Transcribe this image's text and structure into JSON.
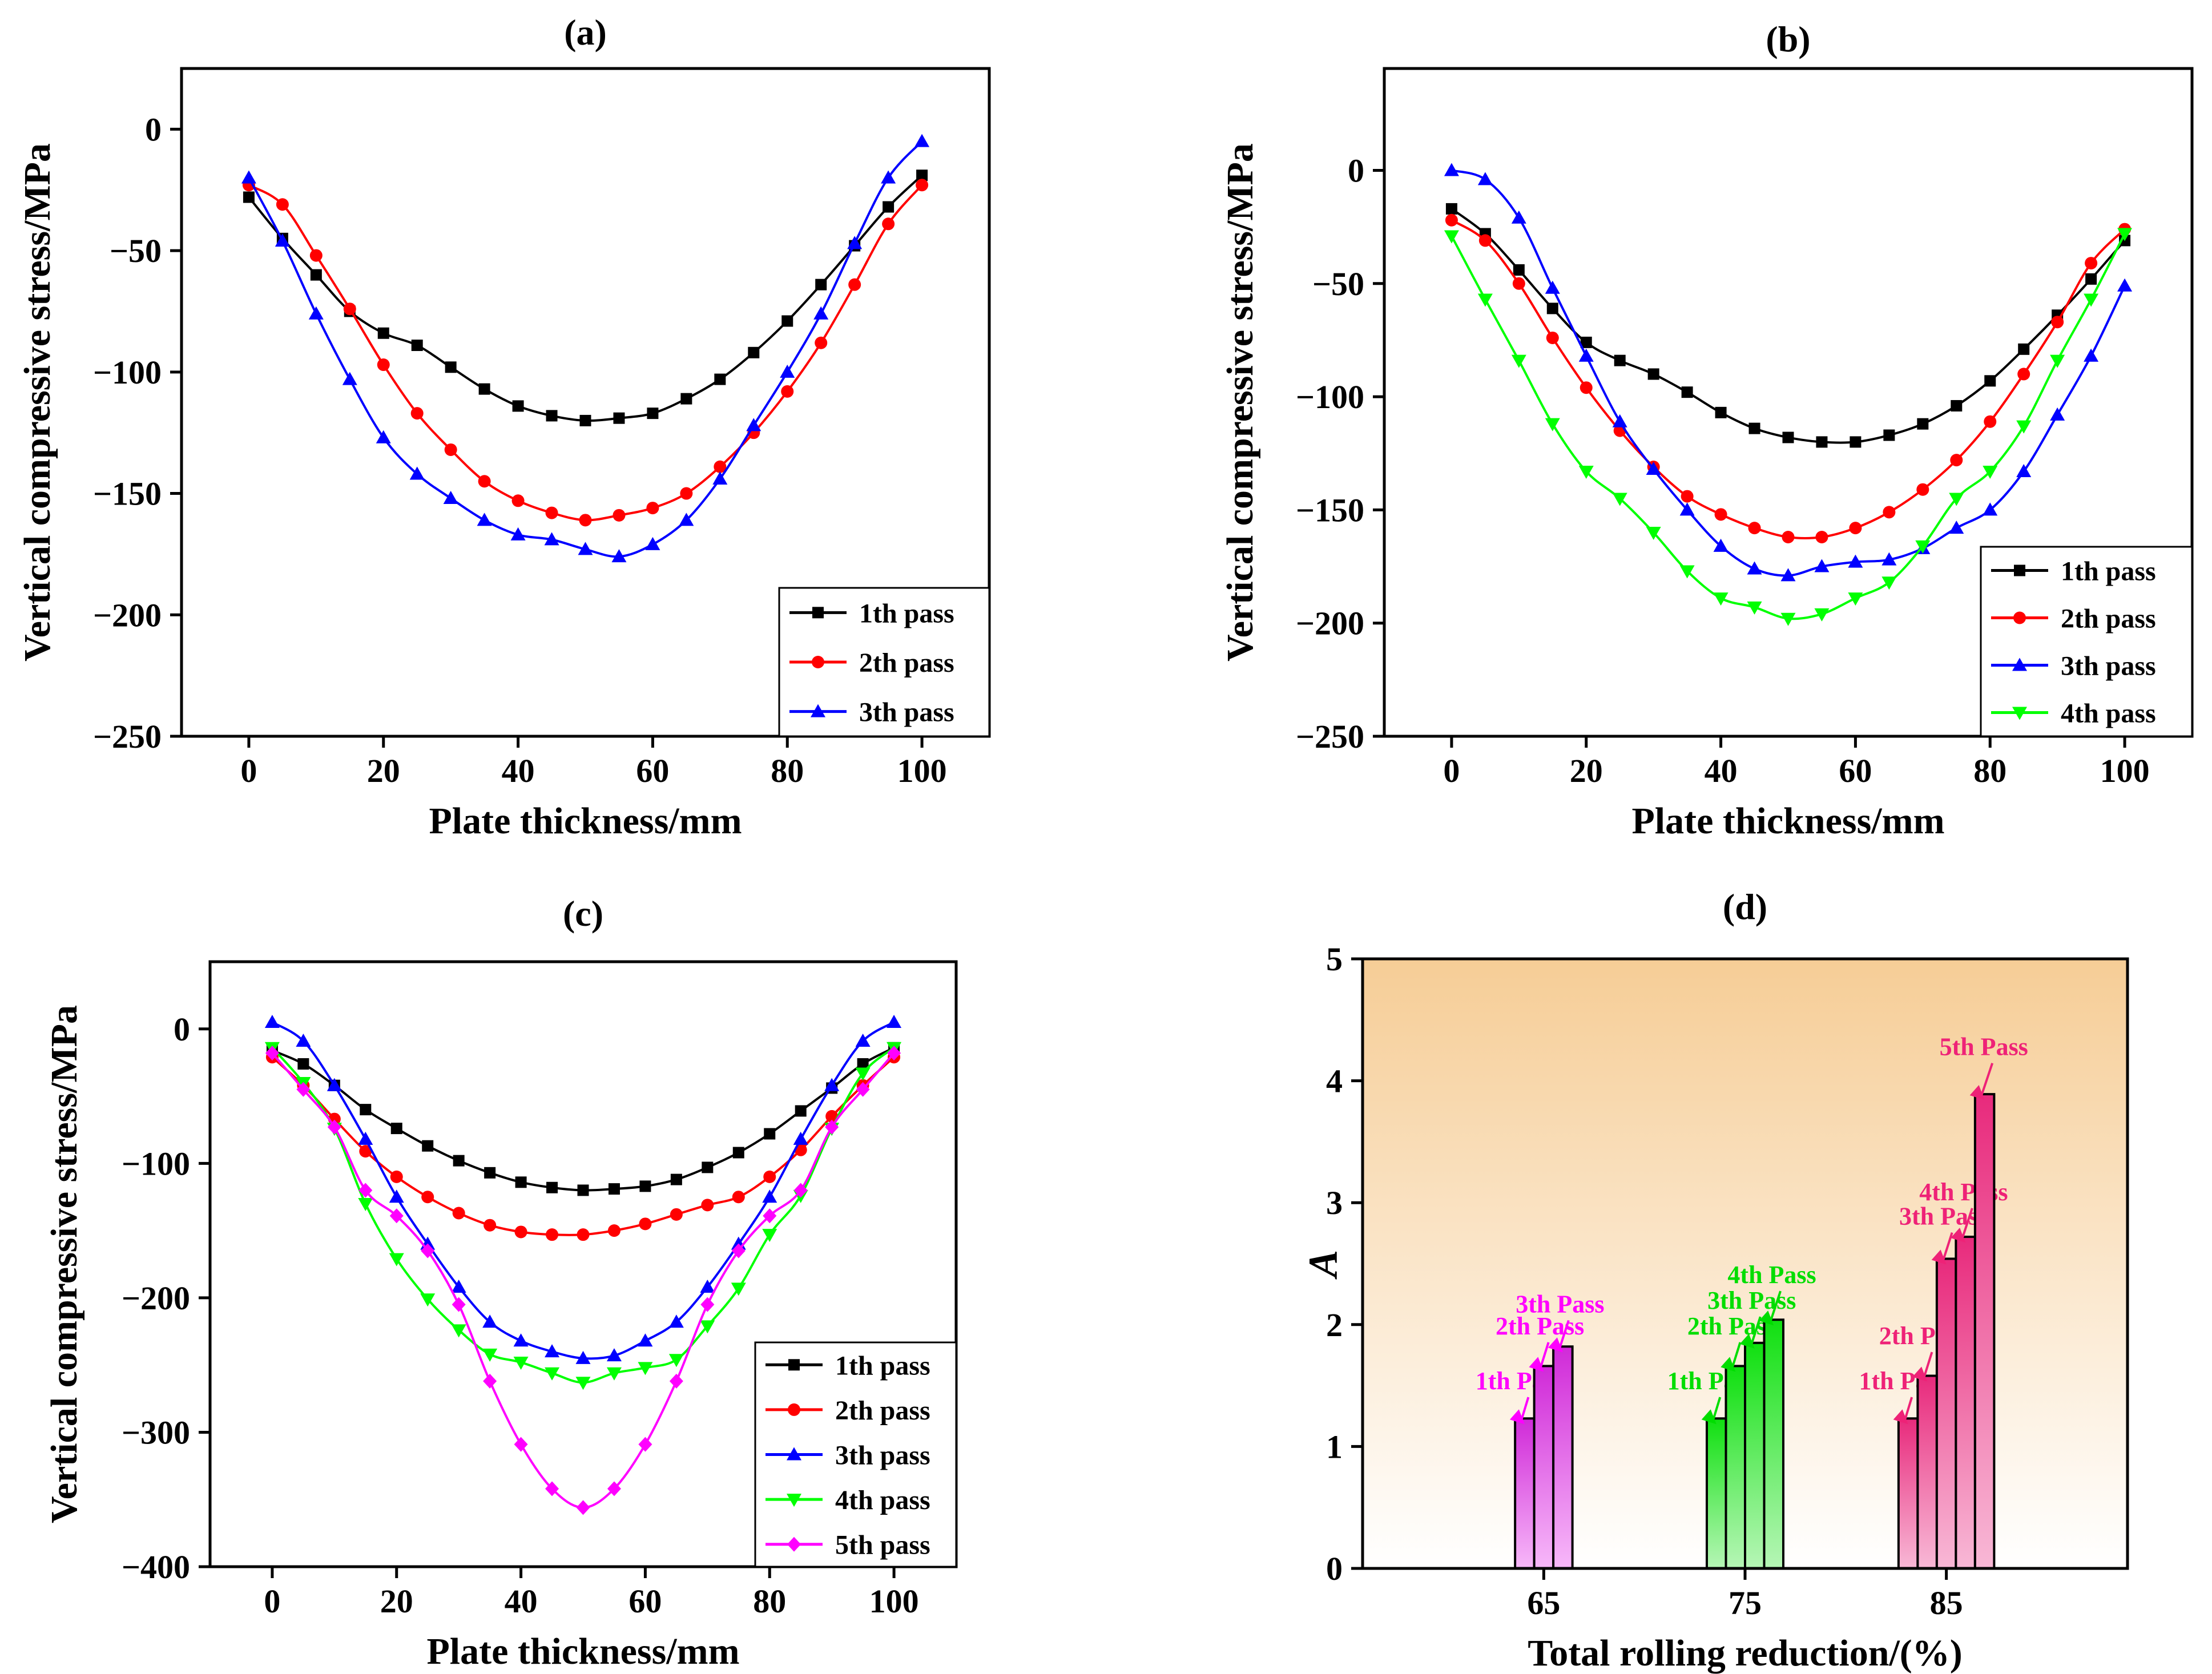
{
  "colors": {
    "pass1": "#000000",
    "pass2": "#ff0000",
    "pass3": "#0000ff",
    "pass4": "#00ff00",
    "pass5": "#ff00ff",
    "bar65": "#e040e8",
    "bar75": "#22dd22",
    "bar85": "#ee3c8c",
    "ann65": "#ff00ff",
    "ann75": "#00dd00",
    "ann85": "#ee2277",
    "panelBgTop": "#f6cd96",
    "panelBgBottom": "#ffffff"
  },
  "chart_data": [
    {
      "type": "line",
      "panel_label": "(a)",
      "xlabel": "Plate thickness/mm",
      "ylabel": "Vertical compressive stress/MPa",
      "xlim": [
        -10,
        110
      ],
      "ylim": [
        -250,
        25
      ],
      "xticks": [
        0,
        20,
        40,
        60,
        80,
        100
      ],
      "yticks": [
        0,
        -50,
        -100,
        -150,
        -200,
        -250
      ],
      "legend_position": "bottom-right",
      "x": [
        0,
        5,
        10,
        15,
        20,
        25,
        30,
        35,
        40,
        45,
        50,
        55,
        60,
        65,
        70,
        75,
        80,
        85,
        90,
        95,
        100
      ],
      "series": [
        {
          "name": "1th pass",
          "marker": "square",
          "color_key": "pass1",
          "values": [
            -28,
            -45,
            -60,
            -75,
            -84,
            -89,
            -98,
            -107,
            -114,
            -118,
            -120,
            -119,
            -117,
            -111,
            -103,
            -92,
            -79,
            -64,
            -48,
            -32,
            -19
          ]
        },
        {
          "name": "2th pass",
          "marker": "circle",
          "color_key": "pass2",
          "values": [
            -23,
            -31,
            -52,
            -74,
            -97,
            -117,
            -132,
            -145,
            -153,
            -158,
            -161,
            -159,
            -156,
            -150,
            -139,
            -125,
            -108,
            -88,
            -64,
            -39,
            -23
          ]
        },
        {
          "name": "3th pass",
          "marker": "triangle-up",
          "color_key": "pass3",
          "values": [
            -20,
            -46,
            -76,
            -103,
            -127,
            -142,
            -152,
            -161,
            -167,
            -169,
            -173,
            -176,
            -171,
            -161,
            -144,
            -122,
            -100,
            -76,
            -47,
            -20,
            -5
          ]
        }
      ]
    },
    {
      "type": "line",
      "panel_label": "(b)",
      "xlabel": "Plate thickness/mm",
      "ylabel": "Vertical compressive stress/MPa",
      "xlim": [
        -10,
        110
      ],
      "ylim": [
        -250,
        45
      ],
      "xticks": [
        0,
        20,
        40,
        60,
        80,
        100
      ],
      "yticks": [
        0,
        -50,
        -100,
        -150,
        -200,
        -250
      ],
      "legend_position": "bottom-right",
      "x": [
        0,
        5,
        10,
        15,
        20,
        25,
        30,
        35,
        40,
        45,
        50,
        55,
        60,
        65,
        70,
        75,
        80,
        85,
        90,
        95,
        100
      ],
      "series": [
        {
          "name": "1th pass",
          "marker": "square",
          "color_key": "pass1",
          "values": [
            -17,
            -28,
            -44,
            -61,
            -76,
            -84,
            -90,
            -98,
            -107,
            -114,
            -118,
            -120,
            -120,
            -117,
            -112,
            -104,
            -93,
            -79,
            -64,
            -48,
            -31
          ]
        },
        {
          "name": "2th pass",
          "marker": "circle",
          "color_key": "pass2",
          "values": [
            -22,
            -31,
            -50,
            -74,
            -96,
            -115,
            -131,
            -144,
            -152,
            -158,
            -162,
            -162,
            -158,
            -151,
            -141,
            -128,
            -111,
            -90,
            -67,
            -41,
            -26
          ]
        },
        {
          "name": "3th pass",
          "marker": "triangle-up",
          "color_key": "pass3",
          "values": [
            0,
            -4,
            -21,
            -52,
            -82,
            -111,
            -132,
            -150,
            -166,
            -176,
            -179,
            -175,
            -173,
            -172,
            -167,
            -158,
            -150,
            -133,
            -108,
            -82,
            -51
          ]
        },
        {
          "name": "4th pass",
          "marker": "triangle-down",
          "color_key": "pass4",
          "values": [
            -29,
            -57,
            -84,
            -112,
            -133,
            -145,
            -160,
            -177,
            -189,
            -193,
            -198,
            -196,
            -189,
            -182,
            -166,
            -145,
            -133,
            -113,
            -84,
            -57,
            -28
          ]
        }
      ]
    },
    {
      "type": "line",
      "panel_label": "(c)",
      "xlabel": "Plate thickness/mm",
      "ylabel": "Vertical compressive stress/MPa",
      "xlim": [
        -10,
        110
      ],
      "ylim": [
        -400,
        50
      ],
      "xticks": [
        0,
        20,
        40,
        60,
        80,
        100
      ],
      "yticks": [
        0,
        -100,
        -200,
        -300,
        -400
      ],
      "legend_position": "bottom-right",
      "x": [
        0,
        5,
        10,
        15,
        20,
        25,
        30,
        35,
        40,
        45,
        50,
        55,
        60,
        65,
        70,
        75,
        80,
        85,
        90,
        95,
        100
      ],
      "series": [
        {
          "name": "1th pass",
          "marker": "square",
          "color_key": "pass1",
          "values": [
            -16,
            -26,
            -42,
            -60,
            -74,
            -87,
            -98,
            -107,
            -114,
            -118,
            -120,
            -119,
            -117,
            -112,
            -103,
            -92,
            -78,
            -61,
            -44,
            -26,
            -14
          ]
        },
        {
          "name": "2th pass",
          "marker": "circle",
          "color_key": "pass2",
          "values": [
            -21,
            -42,
            -67,
            -91,
            -110,
            -125,
            -137,
            -146,
            -151,
            -153,
            -153,
            -150,
            -145,
            -138,
            -131,
            -125,
            -110,
            -90,
            -65,
            -42,
            -21
          ]
        },
        {
          "name": "3th pass",
          "marker": "triangle-up",
          "color_key": "pass3",
          "values": [
            5,
            -9,
            -42,
            -82,
            -125,
            -160,
            -192,
            -218,
            -232,
            -240,
            -245,
            -243,
            -232,
            -218,
            -192,
            -160,
            -125,
            -82,
            -42,
            -9,
            5
          ]
        },
        {
          "name": "4th pass",
          "marker": "triangle-down",
          "color_key": "pass4",
          "values": [
            -14,
            -40,
            -74,
            -130,
            -171,
            -201,
            -224,
            -242,
            -248,
            -256,
            -263,
            -256,
            -252,
            -246,
            -221,
            -193,
            -153,
            -124,
            -74,
            -33,
            -14
          ]
        },
        {
          "name": "5th pass",
          "marker": "diamond",
          "color_key": "pass5",
          "values": [
            -18,
            -45,
            -73,
            -120,
            -139,
            -165,
            -205,
            -262,
            -309,
            -342,
            -356,
            -342,
            -309,
            -262,
            -205,
            -165,
            -139,
            -120,
            -73,
            -45,
            -18
          ]
        }
      ]
    },
    {
      "type": "bar",
      "panel_label": "(d)",
      "xlabel": "Total rolling reduction/(%)",
      "ylabel": "A",
      "xlim": [
        56,
        94
      ],
      "ylim": [
        0,
        5
      ],
      "xticks": [
        65,
        75,
        85
      ],
      "yticks": [
        0,
        1,
        2,
        3,
        4,
        5
      ],
      "groups": [
        {
          "category": "65",
          "color_key": "bar65",
          "ann_color_key": "ann65",
          "labels": [
            "1th Pass",
            "2th Pass",
            "3th Pass"
          ],
          "values": [
            1.23,
            1.66,
            1.82
          ]
        },
        {
          "category": "75",
          "color_key": "bar75",
          "ann_color_key": "ann75",
          "labels": [
            "1th Pass",
            "2th Pass",
            "3th Pass",
            "4th Pass"
          ],
          "values": [
            1.23,
            1.66,
            1.85,
            2.04
          ]
        },
        {
          "category": "85",
          "color_key": "bar85",
          "ann_color_key": "ann85",
          "labels": [
            "1th Pass",
            "2th Pass",
            "3th Pass",
            "4th Pass",
            "5th Pass"
          ],
          "values": [
            1.23,
            1.58,
            2.54,
            2.72,
            3.89
          ]
        }
      ]
    }
  ]
}
